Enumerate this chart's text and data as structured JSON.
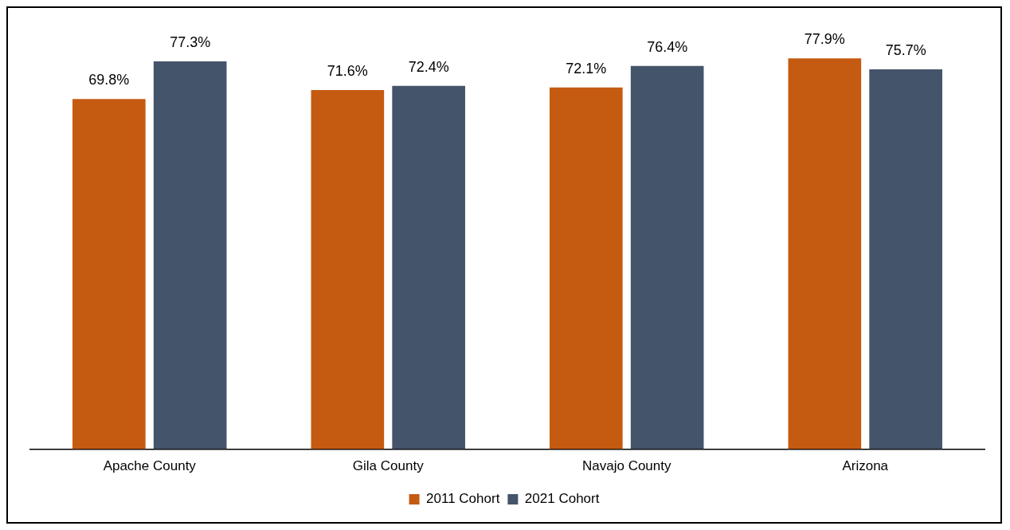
{
  "chart_data": {
    "type": "bar",
    "categories": [
      "Apache County",
      "Gila County",
      "Navajo County",
      "Arizona"
    ],
    "series": [
      {
        "name": "2011 Cohort",
        "color": "#c55a11",
        "values": [
          69.8,
          71.6,
          72.1,
          77.9
        ],
        "value_labels": [
          "69.8%",
          "71.6%",
          "72.1%",
          "77.9%"
        ]
      },
      {
        "name": "2021 Cohort",
        "color": "#44546a",
        "values": [
          77.3,
          72.4,
          76.4,
          75.7
        ],
        "value_labels": [
          "77.3%",
          "72.4%",
          "76.4%",
          "75.7%"
        ]
      }
    ],
    "tick_labels": "x",
    "grid": false,
    "legend": "bottom"
  }
}
